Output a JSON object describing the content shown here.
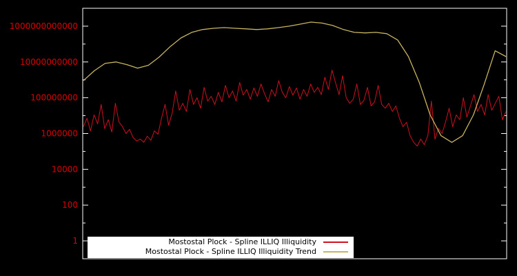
{
  "colors": {
    "background": "#000000",
    "plot_border": "#ffffff",
    "tick_label": "#dd0000",
    "legend_bg": "#ffffff",
    "legend_text": "#000000",
    "series_red": "#d01020",
    "series_trend": "#c8b560"
  },
  "chart_data": {
    "type": "line",
    "title": "",
    "xlabel": "",
    "ylabel": "",
    "y_scale": "log10",
    "ylim": [
      0.1,
      10000000000000.0
    ],
    "grid": false,
    "legend_position": "bottom-center",
    "y_ticks": [
      {
        "label": "1000000000000",
        "value": 1000000000000.0
      },
      {
        "label": "10000000000",
        "value": 10000000000.0
      },
      {
        "label": "100000000",
        "value": 100000000.0
      },
      {
        "label": "1000000",
        "value": 1000000.0
      },
      {
        "label": "10000",
        "value": 10000.0
      },
      {
        "label": "100",
        "value": 100
      },
      {
        "label": "1",
        "value": 1
      }
    ],
    "series": [
      {
        "name": "Mostostal Plock - Spline ILLIQ Illiquidity",
        "color": "#d01020",
        "values": [
          2400000.0,
          7100000.0,
          1400000.0,
          11000000.0,
          3500000.0,
          42000000.0,
          1900000.0,
          5900000.0,
          1200000.0,
          49000000.0,
          4500000.0,
          2400000.0,
          1000000.0,
          1700000.0,
          590000.0,
          380000.0,
          490000.0,
          320000.0,
          710000.0,
          420000.0,
          1400000.0,
          910000.0,
          7100000.0,
          42000000.0,
          2900000.0,
          14000000.0,
          240000000.0,
          20000000.0,
          49000000.0,
          17000000.0,
          290000000.0,
          42000000.0,
          100000000.0,
          26000000.0,
          380000000.0,
          65000000.0,
          120000000.0,
          42000000.0,
          200000000.0,
          59000000.0,
          490000000.0,
          100000000.0,
          240000000.0,
          65000000.0,
          710000000.0,
          140000000.0,
          290000000.0,
          83000000.0,
          350000000.0,
          120000000.0,
          590000000.0,
          170000000.0,
          59000000.0,
          290000000.0,
          120000000.0,
          910000000.0,
          200000000.0,
          100000000.0,
          420000000.0,
          140000000.0,
          350000000.0,
          83000000.0,
          290000000.0,
          120000000.0,
          590000000.0,
          200000000.0,
          380000000.0,
          150000000.0,
          1400000000.0,
          290000000.0,
          3500000000.0,
          710000000.0,
          150000000.0,
          1700000000.0,
          100000000.0,
          49000000.0,
          83000000.0,
          590000000.0,
          42000000.0,
          71000000.0,
          380000000.0,
          35000000.0,
          59000000.0,
          490000000.0,
          42000000.0,
          26000000.0,
          49000000.0,
          17000000.0,
          35000000.0,
          7100000.0,
          2400000.0,
          4200000.0,
          760000.0,
          320000.0,
          200000.0,
          490000.0,
          240000.0,
          760000.0,
          65000000.0,
          490000.0,
          1900000.0,
          1000000.0,
          4500000.0,
          26000000.0,
          2400000.0,
          11000000.0,
          5900000.0,
          100000000.0,
          8300000.0,
          35000000.0,
          150000000.0,
          17000000.0,
          42000000.0,
          11000000.0,
          150000000.0,
          20000000.0,
          49000000.0,
          120000000.0,
          5900000.0,
          17000000.0
        ]
      },
      {
        "name": "Mostostal Plock - Spline ILLIQ Illiquidity Trend",
        "color": "#c8b560",
        "values": [
          910000000.0,
          3200000000.0,
          8300000000.0,
          10000000000.0,
          7100000000.0,
          4500000000.0,
          6500000000.0,
          19000000000.0,
          71000000000.0,
          220000000000.0,
          450000000000.0,
          650000000000.0,
          760000000000.0,
          830000000000.0,
          760000000000.0,
          710000000000.0,
          650000000000.0,
          710000000000.0,
          830000000000.0,
          1000000000000.0,
          1300000000000.0,
          1700000000000.0,
          1500000000000.0,
          1100000000000.0,
          650000000000.0,
          450000000000.0,
          420000000000.0,
          450000000000.0,
          380000000000.0,
          170000000000.0,
          20000000000.0,
          710000000.0,
          11000000.0,
          760000.0,
          320000.0,
          760000.0,
          11000000.0,
          590000000.0,
          42000000000.0,
          20000000000.0
        ]
      }
    ]
  }
}
